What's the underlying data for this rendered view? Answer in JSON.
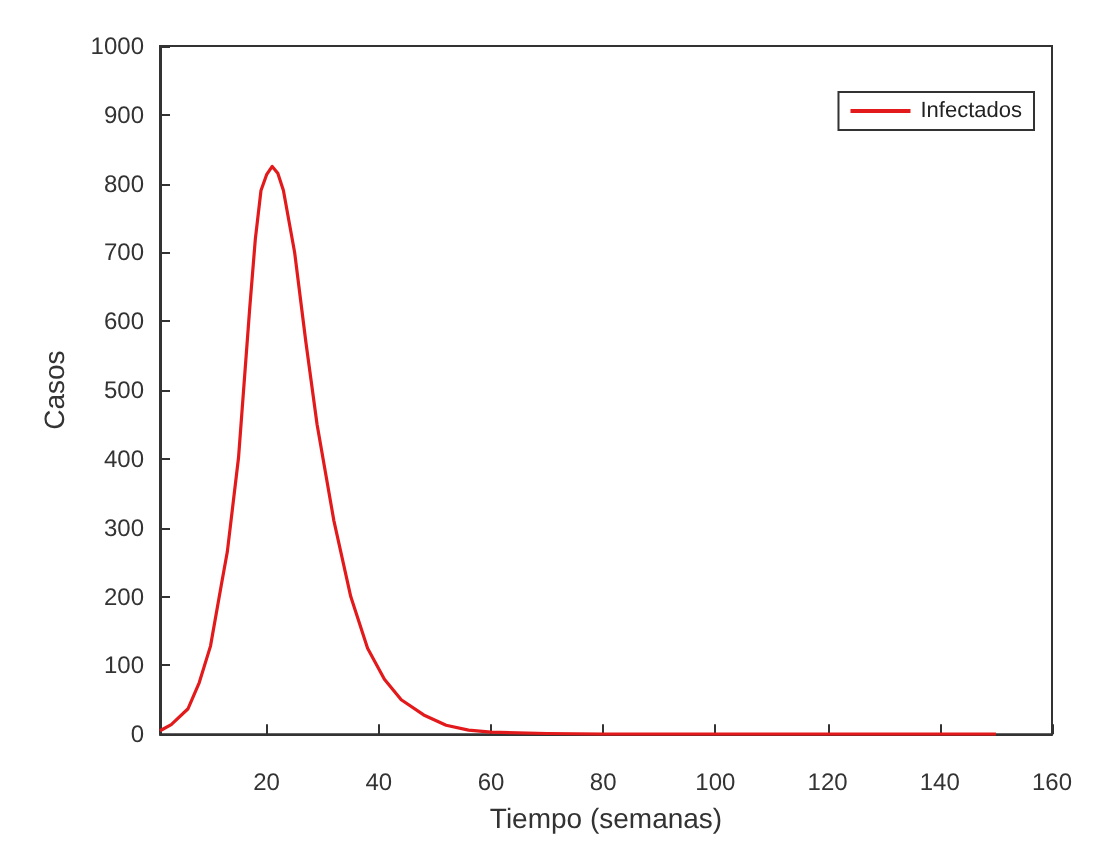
{
  "chart_data": {
    "type": "line",
    "xlabel": "Tiempo (semanas)",
    "ylabel": "Casos",
    "xlim": [
      1,
      160
    ],
    "xticks": [
      20,
      40,
      60,
      80,
      100,
      120,
      140,
      160
    ],
    "ylim": [
      0,
      1000
    ],
    "yticks": [
      0,
      100,
      200,
      300,
      400,
      500,
      600,
      700,
      800,
      900,
      1000
    ],
    "grid": false,
    "legend": "top right",
    "marker": "none",
    "line_style": "solid",
    "series": [
      {
        "name": "Infectados",
        "color": "#e31a1c",
        "x": [
          1,
          3,
          6,
          8,
          10,
          12,
          13,
          15,
          17,
          18,
          19,
          20,
          21,
          22,
          23,
          25,
          27,
          29,
          32,
          35,
          38,
          41,
          44,
          48,
          52,
          56,
          60,
          70,
          80,
          100,
          120,
          150
        ],
        "values": [
          5,
          14,
          37,
          75,
          128,
          220,
          265,
          402,
          620,
          720,
          790,
          813,
          825,
          815,
          790,
          700,
          570,
          450,
          310,
          200,
          125,
          80,
          50,
          28,
          13,
          6,
          3,
          1,
          0,
          0,
          0,
          0
        ]
      }
    ]
  }
}
